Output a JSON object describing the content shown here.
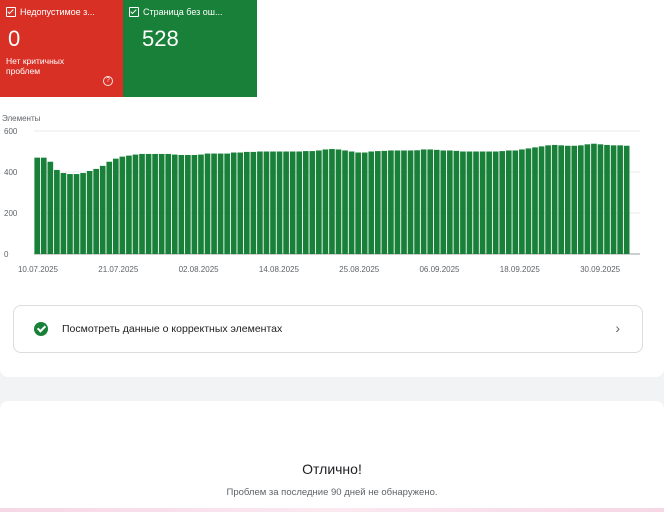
{
  "cards": [
    {
      "label": "Недопустимое з...",
      "value": "0",
      "subtitle": "Нет критичных проблем",
      "color": "#d93025"
    },
    {
      "label": "Страница без ош...",
      "value": "528",
      "subtitle": "",
      "color": "#188038"
    }
  ],
  "chart_data": {
    "type": "bar",
    "ylabel": "Элементы",
    "ylim": [
      0,
      600
    ],
    "yticks": [
      0,
      200,
      400,
      600
    ],
    "xtick_labels": [
      "10.07.2025",
      "21.07.2025",
      "02.08.2025",
      "14.08.2025",
      "25.08.2025",
      "06.09.2025",
      "18.09.2025",
      "30.09.2025"
    ],
    "bar_color": "#188038",
    "values": [
      470,
      470,
      450,
      410,
      395,
      390,
      390,
      395,
      405,
      415,
      430,
      450,
      465,
      475,
      480,
      485,
      488,
      488,
      488,
      488,
      488,
      485,
      483,
      483,
      483,
      485,
      490,
      490,
      490,
      490,
      495,
      495,
      498,
      498,
      500,
      500,
      500,
      500,
      500,
      500,
      500,
      502,
      502,
      505,
      510,
      512,
      510,
      505,
      500,
      495,
      495,
      500,
      502,
      503,
      505,
      505,
      505,
      505,
      506,
      510,
      510,
      508,
      505,
      505,
      503,
      500,
      500,
      500,
      500,
      500,
      500,
      502,
      505,
      505,
      510,
      515,
      520,
      525,
      530,
      532,
      530,
      528,
      528,
      530,
      535,
      538,
      535,
      532,
      530,
      530,
      528
    ]
  },
  "valid_link": {
    "label": "Посмотреть данные о корректных элементах"
  },
  "result": {
    "title": "Отлично!",
    "subtitle": "Проблем за последние 90 дней не обнаружено."
  }
}
